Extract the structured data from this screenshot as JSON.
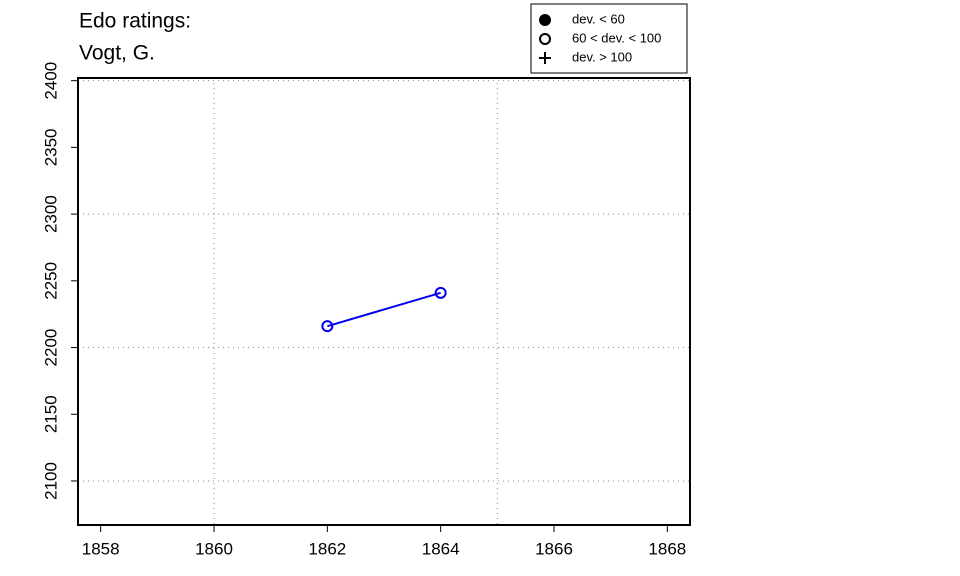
{
  "chart_data": {
    "type": "line",
    "title": "Edo ratings:",
    "subtitle": "Vogt, G.",
    "x": [
      1862,
      1864
    ],
    "series": [
      {
        "color": "#0000ee",
        "marker": "open",
        "values": [
          2216,
          2241
        ]
      }
    ],
    "xlim": [
      1857.6,
      1868.4
    ],
    "xticks": [
      1858,
      1860,
      1862,
      1864,
      1866,
      1868
    ],
    "ylim": [
      2067,
      2402
    ],
    "yticks": [
      2100,
      2150,
      2200,
      2250,
      2300,
      2350,
      2400
    ],
    "xgrid": [
      1860,
      1865
    ],
    "ygrid": [
      2100,
      2200,
      2300,
      2400
    ],
    "legend_position": "top-right",
    "legend": [
      {
        "label": "dev. < 60",
        "symbol": "filled"
      },
      {
        "label": "60 < dev. < 100",
        "symbol": "open"
      },
      {
        "label": "dev. > 100",
        "symbol": "plus"
      }
    ]
  }
}
